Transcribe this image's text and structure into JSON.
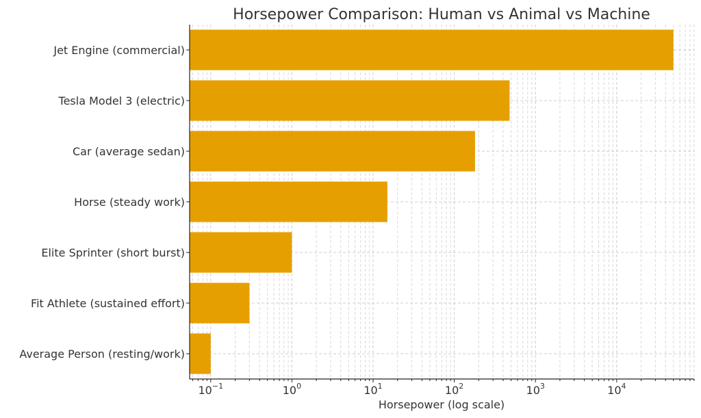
{
  "chart_data": {
    "type": "bar",
    "orientation": "horizontal",
    "title": "Horsepower Comparison: Human vs Animal vs Machine",
    "xlabel": "Horsepower (log scale)",
    "ylabel": "",
    "xscale": "log",
    "xlim": [
      0.055,
      90000
    ],
    "grid": true,
    "bar_color": "#E69F00",
    "categories": [
      "Jet Engine (commercial)",
      "Tesla Model 3 (electric)",
      "Car (average sedan)",
      "Horse (steady work)",
      "Elite Sprinter (short burst)",
      "Fit Athlete (sustained effort)",
      "Average Person (resting/work)"
    ],
    "values": [
      50000,
      480,
      180,
      15,
      1,
      0.3,
      0.1
    ],
    "x_ticks": [
      {
        "value": 0.1,
        "mantissa": "10",
        "exp": "−1"
      },
      {
        "value": 1,
        "mantissa": "10",
        "exp": "0"
      },
      {
        "value": 10,
        "mantissa": "10",
        "exp": "1"
      },
      {
        "value": 100,
        "mantissa": "10",
        "exp": "2"
      },
      {
        "value": 1000,
        "mantissa": "10",
        "exp": "3"
      },
      {
        "value": 10000,
        "mantissa": "10",
        "exp": "4"
      }
    ]
  }
}
